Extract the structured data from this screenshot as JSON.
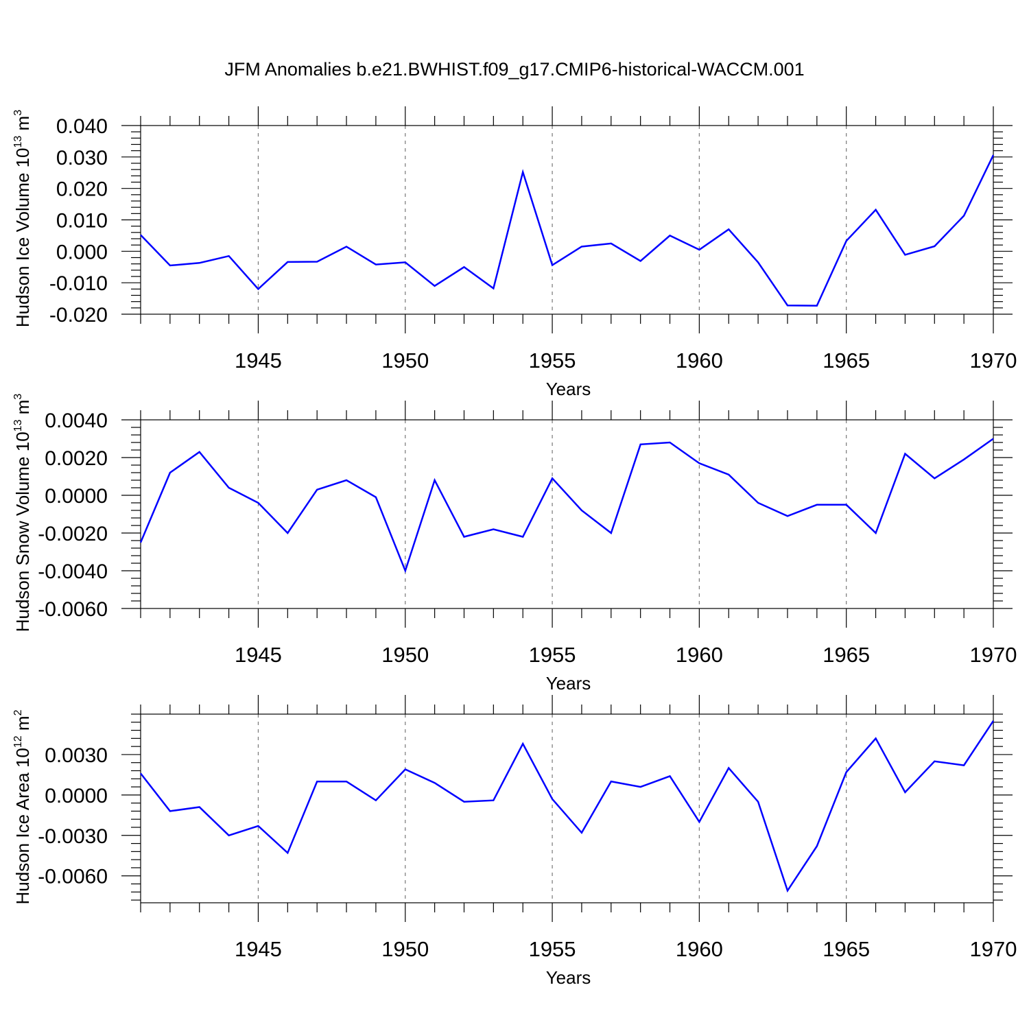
{
  "figure": {
    "title": "JFM Anomalies b.e21.BWHIST.f09_g17.CMIP6-historical-WACCM.001",
    "line_color": "#0000ff"
  },
  "chart_data": [
    {
      "type": "line",
      "ylabel": "Hudson Ice Volume 10",
      "ylabel_exp": "13",
      "ylabel_unit": " m",
      "ylabel_unit_exp": "3",
      "xlabel": "Years",
      "xlim": [
        1941,
        1970
      ],
      "ylim": [
        -0.02,
        0.04
      ],
      "xticks": [
        1945,
        1950,
        1955,
        1960,
        1965,
        1970
      ],
      "yticks": [
        0.04,
        0.03,
        0.02,
        0.01,
        0.0,
        -0.01,
        -0.02
      ],
      "ytick_labels": [
        "0.040",
        "0.030",
        "0.020",
        "0.010",
        "0.000",
        "-0.010",
        "-0.020"
      ],
      "grid_x": true,
      "x": [
        1941,
        1942,
        1943,
        1944,
        1945,
        1946,
        1947,
        1948,
        1949,
        1950,
        1951,
        1952,
        1953,
        1954,
        1955,
        1956,
        1957,
        1958,
        1959,
        1960,
        1961,
        1962,
        1963,
        1964,
        1965,
        1966,
        1967,
        1968,
        1969,
        1970
      ],
      "values": [
        0.0052,
        -0.0045,
        -0.0037,
        -0.0015,
        -0.012,
        -0.0034,
        -0.0033,
        0.0015,
        -0.0042,
        -0.0035,
        -0.011,
        -0.005,
        -0.0118,
        0.0252,
        -0.0044,
        0.0015,
        0.0025,
        -0.0031,
        0.005,
        0.0005,
        0.007,
        -0.0035,
        -0.0172,
        -0.0173,
        0.0033,
        0.0132,
        -0.0011,
        0.0016,
        0.0113,
        0.0306
      ]
    },
    {
      "type": "line",
      "ylabel": "Hudson Snow Volume 10",
      "ylabel_exp": "13",
      "ylabel_unit": " m",
      "ylabel_unit_exp": "3",
      "xlabel": "Years",
      "xlim": [
        1941,
        1970
      ],
      "ylim": [
        -0.006,
        0.004
      ],
      "xticks": [
        1945,
        1950,
        1955,
        1960,
        1965,
        1970
      ],
      "yticks": [
        0.004,
        0.002,
        0.0,
        -0.002,
        -0.004,
        -0.006
      ],
      "ytick_labels": [
        "0.0040",
        "0.0020",
        "0.0000",
        "-0.0020",
        "-0.0040",
        "-0.0060"
      ],
      "grid_x": true,
      "x": [
        1941,
        1942,
        1943,
        1944,
        1945,
        1946,
        1947,
        1948,
        1949,
        1950,
        1951,
        1952,
        1953,
        1954,
        1955,
        1956,
        1957,
        1958,
        1959,
        1960,
        1961,
        1962,
        1963,
        1964,
        1965,
        1966,
        1967,
        1968,
        1969,
        1970
      ],
      "values": [
        -0.0025,
        0.0012,
        0.0023,
        0.0004,
        -0.0004,
        -0.002,
        0.0003,
        0.0008,
        -0.0001,
        -0.004,
        0.0008,
        -0.0022,
        -0.0018,
        -0.0022,
        0.0009,
        -0.0008,
        -0.002,
        0.0027,
        0.0028,
        0.0017,
        0.0011,
        -0.0004,
        -0.0011,
        -0.0005,
        -0.0005,
        -0.002,
        0.0022,
        0.0009,
        0.0019,
        0.003
      ]
    },
    {
      "type": "line",
      "ylabel": "Hudson Ice Area 10",
      "ylabel_exp": "12",
      "ylabel_unit": " m",
      "ylabel_unit_exp": "2",
      "xlabel": "Years",
      "xlim": [
        1941,
        1970
      ],
      "ylim": [
        -0.008,
        0.006
      ],
      "xticks": [
        1945,
        1950,
        1955,
        1960,
        1965,
        1970
      ],
      "yticks": [
        0.003,
        0.0,
        -0.003,
        -0.006
      ],
      "ytick_labels": [
        "0.0030",
        "0.0000",
        "-0.0030",
        "-0.0060"
      ],
      "grid_x": true,
      "x": [
        1941,
        1942,
        1943,
        1944,
        1945,
        1946,
        1947,
        1948,
        1949,
        1950,
        1951,
        1952,
        1953,
        1954,
        1955,
        1956,
        1957,
        1958,
        1959,
        1960,
        1961,
        1962,
        1963,
        1964,
        1965,
        1966,
        1967,
        1968,
        1969,
        1970
      ],
      "values": [
        0.0016,
        -0.0012,
        -0.0009,
        -0.003,
        -0.0023,
        -0.0043,
        0.001,
        0.001,
        -0.0004,
        0.0019,
        0.0009,
        -0.0005,
        -0.0004,
        0.0038,
        -0.0003,
        -0.0028,
        0.001,
        0.0006,
        0.0014,
        -0.002,
        0.002,
        -0.0005,
        -0.0071,
        -0.0038,
        0.0017,
        0.0042,
        0.0002,
        0.0025,
        0.0022,
        0.0055
      ]
    }
  ]
}
